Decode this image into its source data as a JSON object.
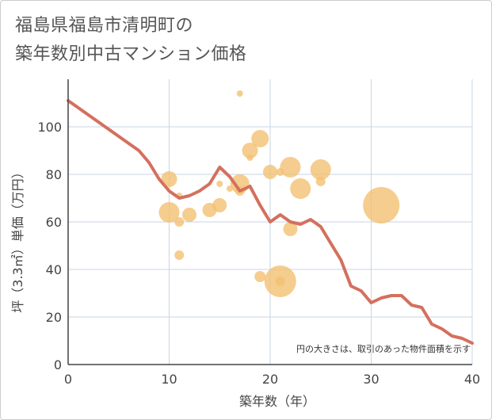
{
  "title": {
    "line1": "福島県福島市清明町の",
    "line2": "築年数別中古マンション価格"
  },
  "note": "円の大きさは、取引のあった物件面積を示す",
  "colors": {
    "line": "#d4705e",
    "bubble": "#f3c072",
    "grid": "#c8d6e5",
    "axis": "#444444",
    "background": "#ffffff"
  },
  "chart_data": {
    "type": "scatter",
    "xlabel": "築年数（年）",
    "ylabel": "坪（3.3㎡）単価（万円）",
    "xlim": [
      0,
      40
    ],
    "ylim": [
      0,
      120
    ],
    "xticks": [
      0,
      10,
      20,
      30,
      40
    ],
    "yticks": [
      0,
      20,
      40,
      60,
      80,
      100
    ],
    "grid": true,
    "line": {
      "x": [
        0,
        1,
        2,
        3,
        4,
        5,
        6,
        7,
        8,
        9,
        10,
        11,
        12,
        13,
        14,
        15,
        16,
        17,
        18,
        19,
        20,
        21,
        22,
        23,
        24,
        25,
        26,
        27,
        28,
        29,
        30,
        31,
        32,
        33,
        34,
        35,
        36,
        37,
        38,
        39,
        40
      ],
      "y": [
        111,
        108,
        105,
        102,
        99,
        96,
        93,
        90,
        85,
        78,
        73,
        70,
        71,
        73,
        76,
        83,
        79,
        73,
        75,
        67,
        60,
        63,
        60,
        59,
        61,
        58,
        51,
        44,
        33,
        31,
        26,
        28,
        29,
        29,
        25,
        24,
        17,
        15,
        12,
        11,
        9
      ]
    },
    "bubbles": [
      {
        "x": 10,
        "y": 78,
        "size": 10
      },
      {
        "x": 10,
        "y": 64,
        "size": 13
      },
      {
        "x": 11,
        "y": 71,
        "size": 4
      },
      {
        "x": 11,
        "y": 60,
        "size": 6
      },
      {
        "x": 11,
        "y": 46,
        "size": 6
      },
      {
        "x": 12,
        "y": 63,
        "size": 9
      },
      {
        "x": 14,
        "y": 65,
        "size": 9
      },
      {
        "x": 15,
        "y": 76,
        "size": 4
      },
      {
        "x": 15,
        "y": 67,
        "size": 9
      },
      {
        "x": 16,
        "y": 74,
        "size": 4
      },
      {
        "x": 17,
        "y": 114,
        "size": 4
      },
      {
        "x": 17,
        "y": 76,
        "size": 12
      },
      {
        "x": 17,
        "y": 73,
        "size": 6
      },
      {
        "x": 18,
        "y": 90,
        "size": 10
      },
      {
        "x": 18,
        "y": 87,
        "size": 4
      },
      {
        "x": 19,
        "y": 95,
        "size": 11
      },
      {
        "x": 19,
        "y": 37,
        "size": 7
      },
      {
        "x": 20,
        "y": 81,
        "size": 9
      },
      {
        "x": 21,
        "y": 81,
        "size": 5
      },
      {
        "x": 21,
        "y": 35,
        "size": 20
      },
      {
        "x": 21,
        "y": 35,
        "size": 6
      },
      {
        "x": 22,
        "y": 83,
        "size": 13
      },
      {
        "x": 22,
        "y": 57,
        "size": 9
      },
      {
        "x": 23,
        "y": 74,
        "size": 13
      },
      {
        "x": 25,
        "y": 82,
        "size": 13
      },
      {
        "x": 25,
        "y": 77,
        "size": 6
      },
      {
        "x": 31,
        "y": 67,
        "size": 23
      }
    ]
  }
}
